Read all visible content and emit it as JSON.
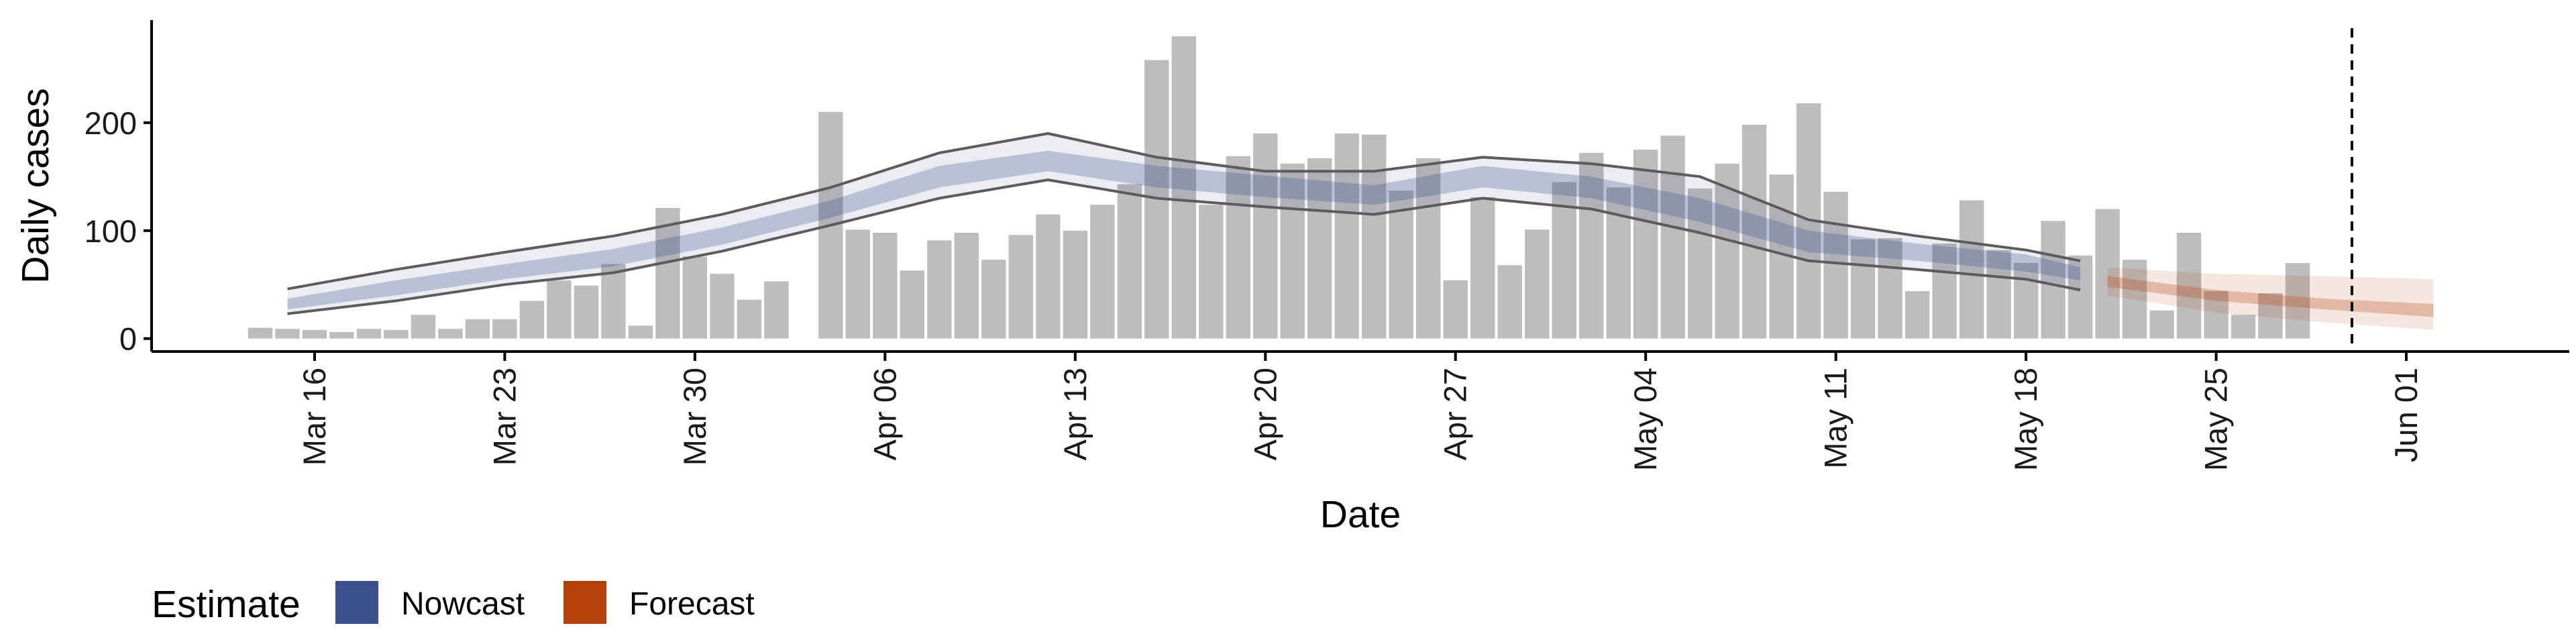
{
  "chart_data": {
    "type": "bar",
    "xlabel": "Date",
    "ylabel": "Daily cases",
    "ylim": [
      -12,
      295
    ],
    "y_ticks": [
      0,
      100,
      200
    ],
    "x_ticks": [
      {
        "date": "2020-03-16",
        "label": "Mar 16"
      },
      {
        "date": "2020-03-23",
        "label": "Mar 23"
      },
      {
        "date": "2020-03-30",
        "label": "Mar 30"
      },
      {
        "date": "2020-04-06",
        "label": "Apr 06"
      },
      {
        "date": "2020-04-13",
        "label": "Apr 13"
      },
      {
        "date": "2020-04-20",
        "label": "Apr 20"
      },
      {
        "date": "2020-04-27",
        "label": "Apr 27"
      },
      {
        "date": "2020-05-04",
        "label": "May 04"
      },
      {
        "date": "2020-05-11",
        "label": "May 11"
      },
      {
        "date": "2020-05-18",
        "label": "May 18"
      },
      {
        "date": "2020-05-25",
        "label": "May 25"
      },
      {
        "date": "2020-06-01",
        "label": "Jun 01"
      }
    ],
    "xlim": [
      "2020-03-10",
      "2020-06-07"
    ],
    "reference_line_date": "2020-05-30",
    "grid": false,
    "legend_position": "bottom-left",
    "legend": {
      "title": "Estimate",
      "items": [
        {
          "label": "Nowcast",
          "color": "#3a4f8c"
        },
        {
          "label": "Forecast",
          "color": "#b5400c"
        }
      ]
    },
    "bar_color": "#bdbdbd",
    "bar_dates_start": "2020-03-14",
    "bars": [
      10,
      9,
      8,
      6,
      9,
      8,
      22,
      9,
      18,
      18,
      35,
      54,
      49,
      69,
      12,
      121,
      76,
      60,
      36,
      53,
      null,
      210,
      101,
      98,
      63,
      91,
      98,
      73,
      96,
      115,
      100,
      124,
      143,
      258,
      280,
      124,
      169,
      190,
      162,
      167,
      190,
      189,
      137,
      167,
      54,
      131,
      68,
      101,
      145,
      172,
      140,
      175,
      188,
      139,
      162,
      198,
      152,
      218,
      136,
      92,
      93,
      44,
      88,
      128,
      82,
      70,
      109,
      77,
      120,
      73,
      26,
      98,
      44,
      22,
      42,
      70
    ],
    "nowcast": {
      "color": "#3a4f8c",
      "dates": [
        "2020-03-15",
        "2020-03-19",
        "2020-03-23",
        "2020-03-27",
        "2020-03-31",
        "2020-04-04",
        "2020-04-08",
        "2020-04-12",
        "2020-04-16",
        "2020-04-20",
        "2020-04-24",
        "2020-04-28",
        "2020-05-02",
        "2020-05-06",
        "2020-05-10",
        "2020-05-14",
        "2020-05-18",
        "2020-05-20"
      ],
      "median": [
        32,
        47,
        62,
        75,
        95,
        120,
        150,
        164,
        150,
        141,
        133,
        150,
        140,
        120,
        90,
        80,
        70,
        60
      ],
      "lower": [
        27,
        40,
        55,
        67,
        87,
        112,
        140,
        155,
        140,
        131,
        124,
        140,
        130,
        108,
        80,
        72,
        62,
        54
      ],
      "upper": [
        37,
        54,
        69,
        83,
        103,
        128,
        160,
        174,
        160,
        151,
        142,
        160,
        150,
        130,
        100,
        88,
        78,
        66
      ],
      "outer_lower": [
        23,
        35,
        50,
        61,
        81,
        105,
        130,
        147,
        130,
        122,
        115,
        130,
        120,
        98,
        72,
        64,
        55,
        45
      ],
      "outer_upper": [
        46,
        64,
        80,
        95,
        115,
        140,
        172,
        190,
        168,
        155,
        155,
        168,
        162,
        150,
        110,
        95,
        82,
        72
      ]
    },
    "forecast": {
      "color": "#b5400c",
      "dates": [
        "2020-05-21",
        "2020-05-25",
        "2020-05-29",
        "2020-06-02"
      ],
      "median": [
        53,
        40,
        32,
        26
      ],
      "lower": [
        48,
        35,
        27,
        20
      ],
      "upper": [
        58,
        45,
        37,
        32
      ],
      "outer_lower": [
        40,
        24,
        15,
        8
      ],
      "outer_upper": [
        66,
        60,
        58,
        55
      ]
    }
  }
}
